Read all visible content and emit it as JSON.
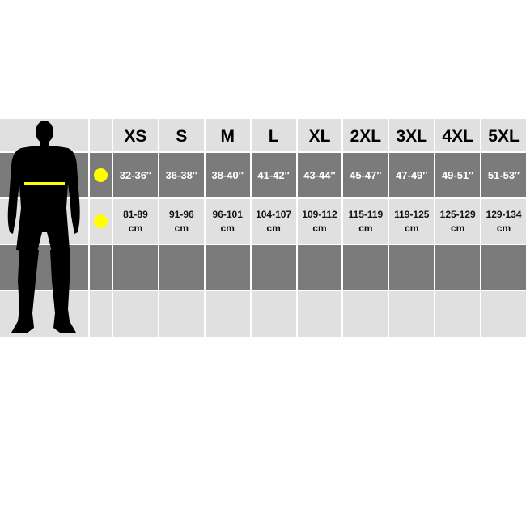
{
  "sizes": [
    "XS",
    "S",
    "M",
    "L",
    "XL",
    "2XL",
    "3XL",
    "4XL",
    "5XL"
  ],
  "chest_in": [
    "32-36″",
    "36-38″",
    "38-40″",
    "41-42″",
    "43-44″",
    "45-47″",
    "47-49″",
    "49-51″",
    "51-53″"
  ],
  "chest_cm": [
    "81-89",
    "91-96",
    "96-101",
    "104-107",
    "109-112",
    "115-119",
    "119-125",
    "125-129",
    "129-134"
  ],
  "cm_unit": "cm",
  "colors": {
    "marker": "#ffff00",
    "dark_row": "#7b7b7b",
    "light_row": "#e0e0e0"
  },
  "icons": {
    "figure": "male-silhouette-icon",
    "chest_marker": "yellow-dot-icon"
  }
}
